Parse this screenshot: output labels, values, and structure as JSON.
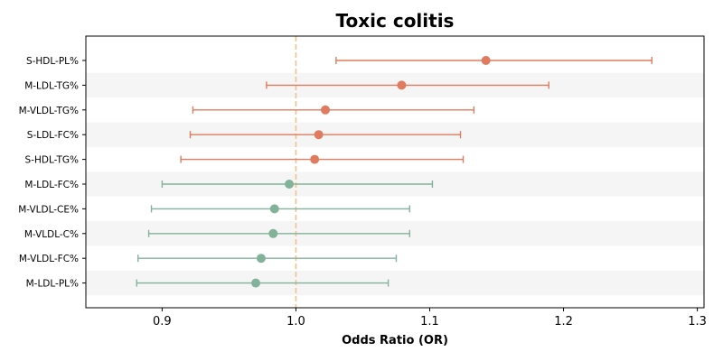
{
  "chart_data": {
    "type": "forest",
    "title": "Toxic colitis",
    "xlabel": "Odds Ratio (OR)",
    "ylabel": "",
    "xlim": [
      0.843,
      1.305
    ],
    "xticks": [
      0.9,
      1.0,
      1.1,
      1.2,
      1.3
    ],
    "xtick_labels": [
      "0.9",
      "1.0",
      "1.1",
      "1.2",
      "1.3"
    ],
    "reference_line": 1.0,
    "grid": false,
    "alternating_row_bands": true,
    "colors": {
      "risk": "#e07b5f",
      "protective": "#82b39a",
      "reference_line": "#f2c28e",
      "band": "#f5f5f5"
    },
    "rows": [
      {
        "label": "S-HDL-PL%",
        "or": 1.142,
        "lower": 1.03,
        "upper": 1.266,
        "group": "risk"
      },
      {
        "label": "M-LDL-TG%",
        "or": 1.079,
        "lower": 0.978,
        "upper": 1.189,
        "group": "risk"
      },
      {
        "label": "M-VLDL-TG%",
        "or": 1.022,
        "lower": 0.923,
        "upper": 1.133,
        "group": "risk"
      },
      {
        "label": "S-LDL-FC%",
        "or": 1.017,
        "lower": 0.921,
        "upper": 1.123,
        "group": "risk"
      },
      {
        "label": "S-HDL-TG%",
        "or": 1.014,
        "lower": 0.914,
        "upper": 1.125,
        "group": "risk"
      },
      {
        "label": "M-LDL-FC%",
        "or": 0.995,
        "lower": 0.9,
        "upper": 1.102,
        "group": "protective"
      },
      {
        "label": "M-VLDL-CE%",
        "or": 0.984,
        "lower": 0.892,
        "upper": 1.085,
        "group": "protective"
      },
      {
        "label": "M-VLDL-C%",
        "or": 0.983,
        "lower": 0.89,
        "upper": 1.085,
        "group": "protective"
      },
      {
        "label": "M-VLDL-FC%",
        "or": 0.974,
        "lower": 0.882,
        "upper": 1.075,
        "group": "protective"
      },
      {
        "label": "M-LDL-PL%",
        "or": 0.97,
        "lower": 0.881,
        "upper": 1.069,
        "group": "protective"
      }
    ]
  }
}
